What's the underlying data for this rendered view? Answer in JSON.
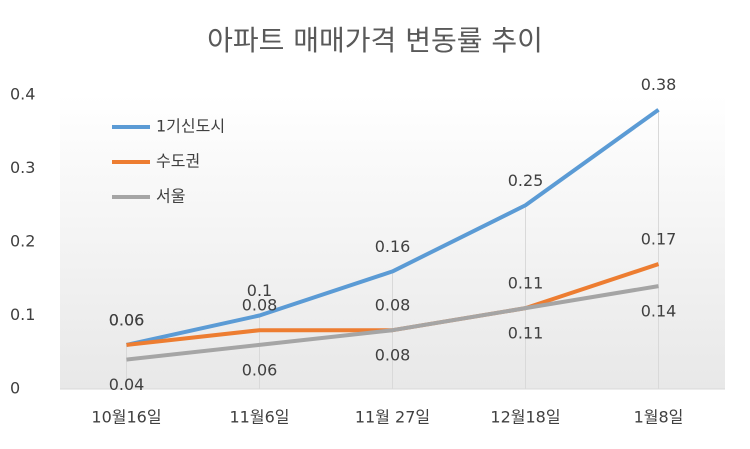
{
  "chart_data": {
    "type": "line",
    "title": "아파트 매매가격 변동률 추이",
    "categories": [
      "10월16일",
      "11월6일",
      "11월 27일",
      "12월18일",
      "1월8일"
    ],
    "series": [
      {
        "name": "1기신도시",
        "color": "#5b9bd5",
        "values": [
          0.06,
          0.1,
          0.16,
          0.25,
          0.38
        ]
      },
      {
        "name": "수도권",
        "color": "#ed7d31",
        "values": [
          0.06,
          0.08,
          0.08,
          0.11,
          0.17
        ]
      },
      {
        "name": "서울",
        "color": "#a5a5a5",
        "values": [
          0.04,
          0.06,
          0.08,
          0.11,
          0.14
        ]
      }
    ],
    "ylim": [
      0,
      0.4
    ],
    "yticks": [
      0,
      0.1,
      0.2,
      0.3,
      0.4
    ],
    "legend": "upper left"
  }
}
